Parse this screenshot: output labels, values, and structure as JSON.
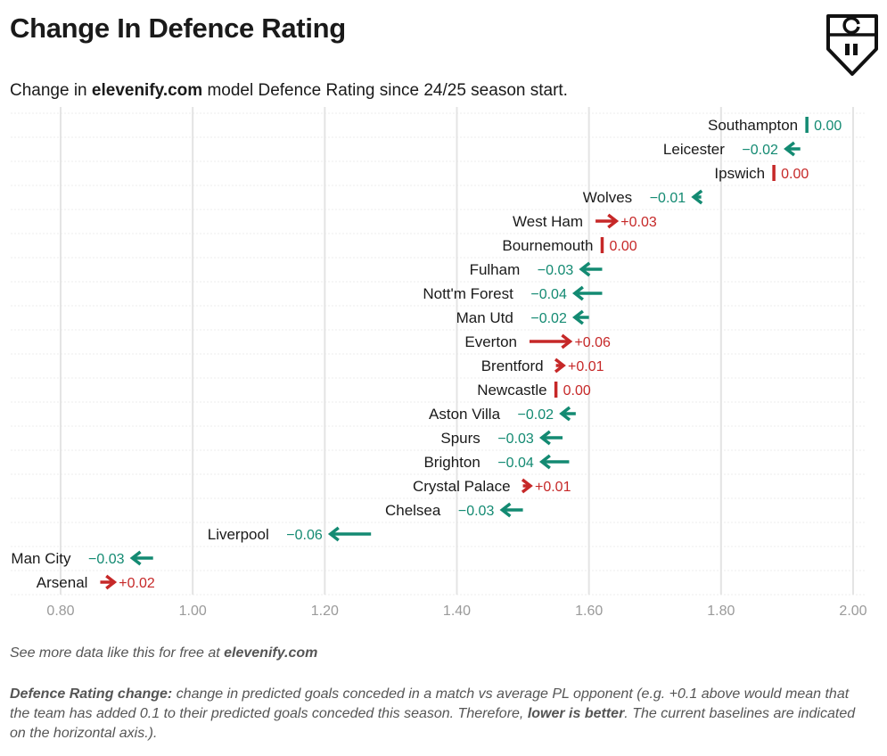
{
  "title": "Change In Defence Rating",
  "subtitle": {
    "pre": "Change in ",
    "brand": "elevenify.com",
    "post": " model Defence Rating since 24/25 season start."
  },
  "footer": {
    "more_pre": "See more data like this for free at ",
    "more_brand": "elevenify.com",
    "note_label": "Defence Rating change:",
    "note_text_1": " change in predicted goals conceded in a match vs average PL opponent (e.g. +0.1 above would mean that the team has added 0.1 to their predicted goals conceded this season. Therefore, ",
    "note_bold": "lower is better",
    "note_text_2": ". The current baselines are indicated on the horizontal axis.)."
  },
  "colors": {
    "improve": "#138a72",
    "worse": "#c62828",
    "grid": "#e4e4e4",
    "axis_text": "#9a9a9a"
  },
  "chart_data": {
    "type": "arrow",
    "xlim": [
      0.8,
      2.0
    ],
    "xticks": [
      "0.80",
      "1.00",
      "1.20",
      "1.40",
      "1.60",
      "1.80",
      "2.00"
    ],
    "grid": true,
    "teams": [
      {
        "name": "Southampton",
        "start": 1.93,
        "end": 1.93,
        "label": "0.00"
      },
      {
        "name": "Leicester",
        "start": 1.92,
        "end": 1.9,
        "label": "−0.02"
      },
      {
        "name": "Ipswich",
        "start": 1.88,
        "end": 1.88,
        "label": "0.00"
      },
      {
        "name": "Wolves",
        "start": 1.77,
        "end": 1.76,
        "label": "−0.01"
      },
      {
        "name": "West Ham",
        "start": 1.61,
        "end": 1.64,
        "label": "+0.03"
      },
      {
        "name": "Bournemouth",
        "start": 1.62,
        "end": 1.62,
        "label": "0.00"
      },
      {
        "name": "Fulham",
        "start": 1.62,
        "end": 1.59,
        "label": "−0.03"
      },
      {
        "name": "Nott'm Forest",
        "start": 1.62,
        "end": 1.58,
        "label": "−0.04"
      },
      {
        "name": "Man Utd",
        "start": 1.6,
        "end": 1.58,
        "label": "−0.02"
      },
      {
        "name": "Everton",
        "start": 1.51,
        "end": 1.57,
        "label": "+0.06"
      },
      {
        "name": "Brentford",
        "start": 1.55,
        "end": 1.56,
        "label": "+0.01"
      },
      {
        "name": "Newcastle",
        "start": 1.55,
        "end": 1.55,
        "label": "0.00"
      },
      {
        "name": "Aston Villa",
        "start": 1.58,
        "end": 1.56,
        "label": "−0.02"
      },
      {
        "name": "Spurs",
        "start": 1.56,
        "end": 1.53,
        "label": "−0.03"
      },
      {
        "name": "Brighton",
        "start": 1.57,
        "end": 1.53,
        "label": "−0.04"
      },
      {
        "name": "Crystal Palace",
        "start": 1.5,
        "end": 1.51,
        "label": "+0.01"
      },
      {
        "name": "Chelsea",
        "start": 1.5,
        "end": 1.47,
        "label": "−0.03"
      },
      {
        "name": "Liverpool",
        "start": 1.27,
        "end": 1.21,
        "label": "−0.06"
      },
      {
        "name": "Man City",
        "start": 0.94,
        "end": 0.91,
        "label": "−0.03"
      },
      {
        "name": "Arsenal",
        "start": 0.86,
        "end": 0.88,
        "label": "+0.02"
      }
    ]
  }
}
